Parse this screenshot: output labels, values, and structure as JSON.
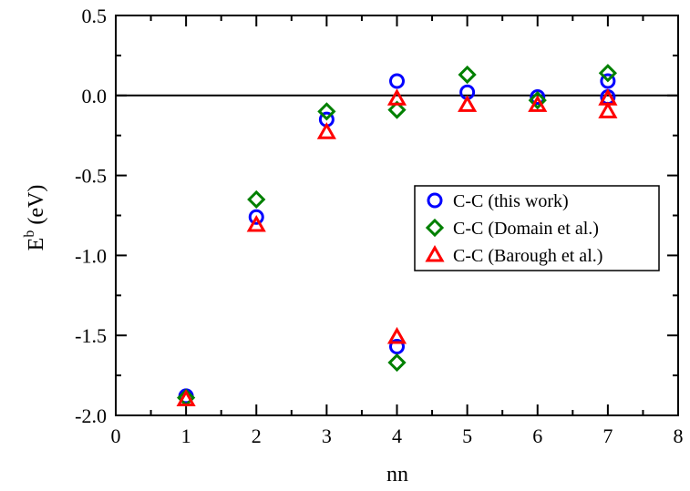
{
  "chart_data": {
    "type": "scatter",
    "xlabel": "nn",
    "ylabel_main": "E",
    "ylabel_sup": "b",
    "ylabel_unit": " (eV)",
    "xlim": [
      0,
      8
    ],
    "ylim": [
      -2.0,
      0.5
    ],
    "x_ticks": [
      0,
      1,
      2,
      3,
      4,
      5,
      6,
      7,
      8
    ],
    "x_tick_labels": [
      "0",
      "1",
      "2",
      "3",
      "4",
      "5",
      "6",
      "7",
      "8"
    ],
    "y_ticks": [
      -2.0,
      -1.5,
      -1.0,
      -0.5,
      0.0,
      0.5
    ],
    "y_tick_labels": [
      "-2.0",
      "-1.5",
      "-1.0",
      "-0.5",
      "0.0",
      "0.5"
    ],
    "zero_line": true,
    "grid": false,
    "legend_position": "right",
    "series": [
      {
        "name": "C-C (this work)",
        "marker": "circle",
        "color": "#0000ff",
        "points": [
          {
            "x": 1,
            "y": -1.88
          },
          {
            "x": 2,
            "y": -0.76
          },
          {
            "x": 3,
            "y": -0.15
          },
          {
            "x": 4,
            "y": 0.09
          },
          {
            "x": 4,
            "y": -1.57
          },
          {
            "x": 5,
            "y": 0.02
          },
          {
            "x": 6,
            "y": -0.01
          },
          {
            "x": 7,
            "y": 0.09
          },
          {
            "x": 7,
            "y": -0.01
          }
        ]
      },
      {
        "name": "C-C (Domain et al.)",
        "marker": "diamond",
        "color": "#008000",
        "points": [
          {
            "x": 1,
            "y": -1.89
          },
          {
            "x": 2,
            "y": -0.65
          },
          {
            "x": 3,
            "y": -0.1
          },
          {
            "x": 4,
            "y": -0.09
          },
          {
            "x": 4,
            "y": -1.67
          },
          {
            "x": 5,
            "y": 0.13
          },
          {
            "x": 6,
            "y": -0.03
          },
          {
            "x": 7,
            "y": 0.14
          }
        ]
      },
      {
        "name": "C-C (Barough et al.)",
        "marker": "triangle",
        "color": "#ff0000",
        "points": [
          {
            "x": 1,
            "y": -1.9
          },
          {
            "x": 2,
            "y": -0.81
          },
          {
            "x": 3,
            "y": -0.23
          },
          {
            "x": 4,
            "y": -0.02
          },
          {
            "x": 4,
            "y": -1.51
          },
          {
            "x": 5,
            "y": -0.06
          },
          {
            "x": 6,
            "y": -0.06
          },
          {
            "x": 7,
            "y": -0.02
          },
          {
            "x": 7,
            "y": -0.1
          }
        ]
      }
    ]
  }
}
